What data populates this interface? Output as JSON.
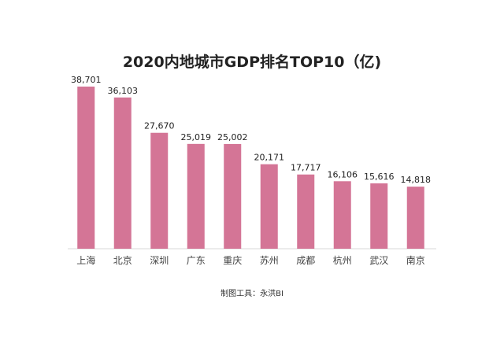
{
  "chart_data": {
    "type": "bar",
    "title": "2020内地城市GDP排名TOP10（亿)",
    "categories": [
      "上海",
      "北京",
      "深圳",
      "广东",
      "重庆",
      "苏州",
      "成都",
      "杭州",
      "武汉",
      "南京"
    ],
    "values": [
      38701,
      36103,
      27670,
      25019,
      25002,
      20171,
      17717,
      16106,
      15616,
      14818
    ],
    "value_labels": [
      "38,701",
      "36,103",
      "27,670",
      "25,019",
      "25,002",
      "20,171",
      "17,717",
      "16,106",
      "15,616",
      "14,818"
    ],
    "xlabel": "",
    "ylabel": "",
    "ylim": [
      0,
      38701
    ],
    "grid": false,
    "legend": "none",
    "bar_color": "#d47596",
    "axis_color": "#d8d8d8"
  },
  "footer": {
    "note": "制图工具：永洪BI"
  }
}
